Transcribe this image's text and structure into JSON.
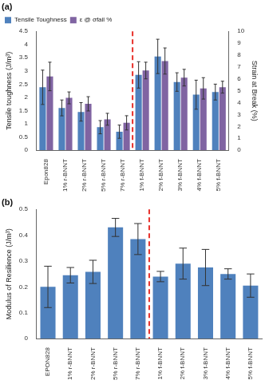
{
  "chart_data": [
    {
      "type": "bar",
      "title": "(a)",
      "categories": [
        "Epon828",
        "1% r-BNNT",
        "2% r-BNNT",
        "5% r-BNNT",
        "7% r-BNNT",
        "1% f-BNNT",
        "2% f-BNNT",
        "3% f-BNNT",
        "4% f-BNNT",
        "5% f-BNNT"
      ],
      "series": [
        {
          "name": "Tensile Toughness",
          "color": "#4f81bd",
          "axis": "y",
          "values": [
            2.38,
            1.6,
            1.45,
            0.87,
            0.7,
            2.85,
            3.55,
            2.58,
            2.1,
            2.2
          ],
          "errors": [
            0.65,
            0.3,
            0.35,
            0.25,
            0.25,
            0.5,
            0.65,
            0.35,
            0.55,
            0.3
          ]
        },
        {
          "name": "ε @ σfail %",
          "color": "#8064a2",
          "axis": "y2",
          "values": [
            6.2,
            4.4,
            3.9,
            2.6,
            2.3,
            6.7,
            7.5,
            6.1,
            5.2,
            5.3
          ],
          "errors": [
            1.2,
            0.5,
            0.6,
            0.5,
            0.6,
            0.7,
            1.1,
            0.7,
            0.9,
            0.5
          ]
        }
      ],
      "ylabel": "Tensile toughness (J/m³)",
      "y2label": "Strain at Break (%)",
      "ylim": [
        0,
        4.5
      ],
      "yticks": [
        0,
        0.5,
        1,
        1.5,
        2,
        2.5,
        3,
        3.5,
        4,
        4.5
      ],
      "y2lim": [
        0,
        10
      ],
      "y2ticks": [
        0,
        1,
        2,
        3,
        4,
        5,
        6,
        7,
        8,
        9,
        10
      ],
      "grid": false,
      "legend": "upper left"
    },
    {
      "type": "bar",
      "title": "(b)",
      "categories": [
        "EPON828",
        "1% r-BNNT",
        "2% r-BNNT",
        "5% r-BNNT",
        "7% r-BNNT",
        "1% f-BNNT",
        "2% f-BNNT",
        "3% f-BNNT",
        "4% f-BNNT",
        "5% f-BNNT"
      ],
      "values": [
        0.2,
        0.245,
        0.258,
        0.43,
        0.385,
        0.24,
        0.29,
        0.275,
        0.25,
        0.205
      ],
      "errors": [
        0.08,
        0.03,
        0.045,
        0.035,
        0.06,
        0.02,
        0.06,
        0.07,
        0.02,
        0.045
      ],
      "color": "#4f81bd",
      "ylabel": "Modulus of Resilience (J/m³)",
      "ylim": [
        0,
        0.5
      ],
      "yticks": [
        0,
        0.1,
        0.2,
        0.3,
        0.4,
        0.5
      ],
      "grid": false
    }
  ]
}
